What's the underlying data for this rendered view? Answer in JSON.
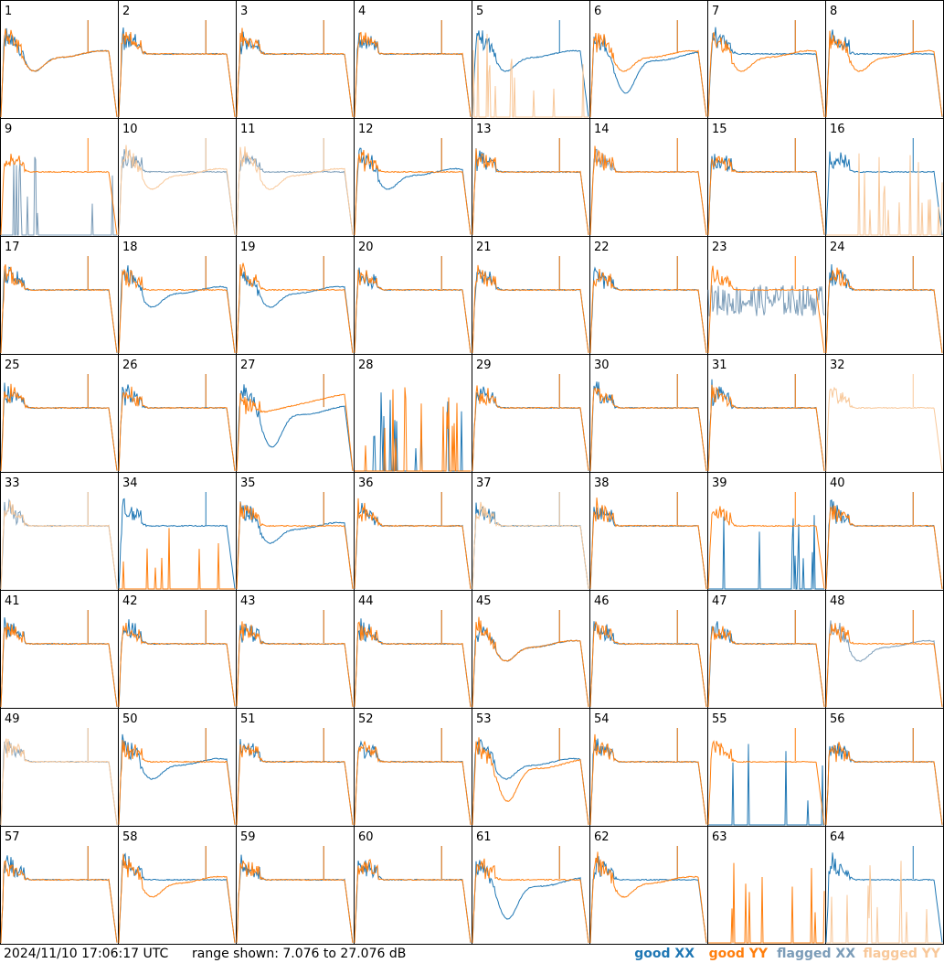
{
  "colors": {
    "good_xx": "#1f77b4",
    "good_yy": "#ff7f0e",
    "flagged_xx": "#7b9cb8",
    "flagged_yy": "#f8c89a",
    "frame": "#000000"
  },
  "footer": {
    "timestamp": "2024/11/10 17:06:17 UTC",
    "range_text": "range shown: 7.076 to 27.076 dB",
    "legend": {
      "good_xx": "good XX",
      "good_yy": "good YY",
      "flagged_xx": "flagged XX",
      "flagged_yy": "flagged YY"
    }
  },
  "chart_data": {
    "type": "line",
    "layout": "grid 8x8 small multiples",
    "x_axis": "frequency channel (unlabeled)",
    "ylim": [
      7.076,
      27.076
    ],
    "y_units": "dB",
    "panel_profiles": [
      {
        "panel": 1,
        "xx": "dip",
        "yy": "dip",
        "flag_xx": false,
        "flag_yy": false
      },
      {
        "panel": 2,
        "xx": "flat",
        "yy": "flat",
        "flag_xx": false,
        "flag_yy": false
      },
      {
        "panel": 3,
        "xx": "flat",
        "yy": "flat",
        "flag_xx": false,
        "flag_yy": false
      },
      {
        "panel": 4,
        "xx": "flat",
        "yy": "flat",
        "flag_xx": false,
        "flag_yy": false
      },
      {
        "panel": 5,
        "xx": "dip",
        "yy": "dead",
        "flag_xx": false,
        "flag_yy": true
      },
      {
        "panel": 6,
        "xx": "deepdip",
        "yy": "dip",
        "flag_xx": false,
        "flag_yy": false
      },
      {
        "panel": 7,
        "xx": "flat",
        "yy": "dip",
        "flag_xx": false,
        "flag_yy": false
      },
      {
        "panel": 8,
        "xx": "flat",
        "yy": "dip",
        "flag_xx": false,
        "flag_yy": false
      },
      {
        "panel": 9,
        "xx": "dead",
        "yy": "flat",
        "flag_xx": true,
        "flag_yy": false
      },
      {
        "panel": 10,
        "xx": "flat",
        "yy": "dip",
        "flag_xx": true,
        "flag_yy": true
      },
      {
        "panel": 11,
        "xx": "flat",
        "yy": "dip",
        "flag_xx": true,
        "flag_yy": true
      },
      {
        "panel": 12,
        "xx": "dip",
        "yy": "flat",
        "flag_xx": false,
        "flag_yy": false
      },
      {
        "panel": 13,
        "xx": "flat",
        "yy": "flat",
        "flag_xx": false,
        "flag_yy": false
      },
      {
        "panel": 14,
        "xx": "flat",
        "yy": "flat",
        "flag_xx": true,
        "flag_yy": false
      },
      {
        "panel": 15,
        "xx": "flat",
        "yy": "flat",
        "flag_xx": false,
        "flag_yy": false
      },
      {
        "panel": 16,
        "xx": "flat",
        "yy": "dead",
        "flag_xx": false,
        "flag_yy": true
      },
      {
        "panel": 17,
        "xx": "flat",
        "yy": "flat",
        "flag_xx": false,
        "flag_yy": false
      },
      {
        "panel": 18,
        "xx": "dip",
        "yy": "flat",
        "flag_xx": false,
        "flag_yy": false
      },
      {
        "panel": 19,
        "xx": "dip",
        "yy": "flat",
        "flag_xx": false,
        "flag_yy": false
      },
      {
        "panel": 20,
        "xx": "flat",
        "yy": "flat",
        "flag_xx": false,
        "flag_yy": false
      },
      {
        "panel": 21,
        "xx": "flat",
        "yy": "flat",
        "flag_xx": false,
        "flag_yy": false
      },
      {
        "panel": 22,
        "xx": "flat",
        "yy": "flat",
        "flag_xx": false,
        "flag_yy": false
      },
      {
        "panel": 23,
        "xx": "noisy",
        "yy": "flat",
        "flag_xx": true,
        "flag_yy": false
      },
      {
        "panel": 24,
        "xx": "flat",
        "yy": "flat",
        "flag_xx": false,
        "flag_yy": false
      },
      {
        "panel": 25,
        "xx": "flat",
        "yy": "flat",
        "flag_xx": false,
        "flag_yy": false
      },
      {
        "panel": 26,
        "xx": "flat",
        "yy": "flat",
        "flag_xx": false,
        "flag_yy": false
      },
      {
        "panel": 27,
        "xx": "deepdip",
        "yy": "rise",
        "flag_xx": false,
        "flag_yy": false
      },
      {
        "panel": 28,
        "xx": "dead",
        "yy": "dead",
        "flag_xx": false,
        "flag_yy": false
      },
      {
        "panel": 29,
        "xx": "flat",
        "yy": "flat",
        "flag_xx": false,
        "flag_yy": false
      },
      {
        "panel": 30,
        "xx": "flat",
        "yy": "flat",
        "flag_xx": false,
        "flag_yy": false
      },
      {
        "panel": 31,
        "xx": "flat",
        "yy": "flat",
        "flag_xx": false,
        "flag_yy": false
      },
      {
        "panel": 32,
        "xx": "none",
        "yy": "flat",
        "flag_xx": false,
        "flag_yy": true
      },
      {
        "panel": 33,
        "xx": "flat",
        "yy": "flat",
        "flag_xx": true,
        "flag_yy": true
      },
      {
        "panel": 34,
        "xx": "flat",
        "yy": "dead",
        "flag_xx": false,
        "flag_yy": false
      },
      {
        "panel": 35,
        "xx": "dip",
        "yy": "flat",
        "flag_xx": false,
        "flag_yy": false
      },
      {
        "panel": 36,
        "xx": "flat",
        "yy": "flat",
        "flag_xx": false,
        "flag_yy": false
      },
      {
        "panel": 37,
        "xx": "flat",
        "yy": "flat",
        "flag_xx": false,
        "flag_yy": true
      },
      {
        "panel": 38,
        "xx": "flat",
        "yy": "flat",
        "flag_xx": false,
        "flag_yy": false
      },
      {
        "panel": 39,
        "xx": "dead",
        "yy": "flat",
        "flag_xx": false,
        "flag_yy": false
      },
      {
        "panel": 40,
        "xx": "flat",
        "yy": "flat",
        "flag_xx": false,
        "flag_yy": false
      },
      {
        "panel": 41,
        "xx": "flat",
        "yy": "flat",
        "flag_xx": false,
        "flag_yy": false
      },
      {
        "panel": 42,
        "xx": "flat",
        "yy": "flat",
        "flag_xx": false,
        "flag_yy": false
      },
      {
        "panel": 43,
        "xx": "flat",
        "yy": "flat",
        "flag_xx": false,
        "flag_yy": false
      },
      {
        "panel": 44,
        "xx": "flat",
        "yy": "flat",
        "flag_xx": false,
        "flag_yy": false
      },
      {
        "panel": 45,
        "xx": "dip",
        "yy": "dip",
        "flag_xx": false,
        "flag_yy": false
      },
      {
        "panel": 46,
        "xx": "flat",
        "yy": "flat",
        "flag_xx": false,
        "flag_yy": false
      },
      {
        "panel": 47,
        "xx": "flat",
        "yy": "flat",
        "flag_xx": false,
        "flag_yy": false
      },
      {
        "panel": 48,
        "xx": "dip",
        "yy": "flat",
        "flag_xx": true,
        "flag_yy": false
      },
      {
        "panel": 49,
        "xx": "flat",
        "yy": "flat",
        "flag_xx": true,
        "flag_yy": true
      },
      {
        "panel": 50,
        "xx": "dip",
        "yy": "flat",
        "flag_xx": false,
        "flag_yy": false
      },
      {
        "panel": 51,
        "xx": "flat",
        "yy": "flat",
        "flag_xx": false,
        "flag_yy": false
      },
      {
        "panel": 52,
        "xx": "flat",
        "yy": "flat",
        "flag_xx": false,
        "flag_yy": false
      },
      {
        "panel": 53,
        "xx": "dip",
        "yy": "deepdip",
        "flag_xx": false,
        "flag_yy": false
      },
      {
        "panel": 54,
        "xx": "flat",
        "yy": "flat",
        "flag_xx": false,
        "flag_yy": false
      },
      {
        "panel": 55,
        "xx": "dead",
        "yy": "flat",
        "flag_xx": false,
        "flag_yy": false
      },
      {
        "panel": 56,
        "xx": "flat",
        "yy": "flat",
        "flag_xx": false,
        "flag_yy": false
      },
      {
        "panel": 57,
        "xx": "flat",
        "yy": "flat",
        "flag_xx": false,
        "flag_yy": false
      },
      {
        "panel": 58,
        "xx": "flat",
        "yy": "dip",
        "flag_xx": false,
        "flag_yy": false
      },
      {
        "panel": 59,
        "xx": "flat",
        "yy": "flat",
        "flag_xx": false,
        "flag_yy": false
      },
      {
        "panel": 60,
        "xx": "flat",
        "yy": "flat",
        "flag_xx": false,
        "flag_yy": false
      },
      {
        "panel": 61,
        "xx": "deepdip",
        "yy": "flat",
        "flag_xx": false,
        "flag_yy": false
      },
      {
        "panel": 62,
        "xx": "flat",
        "yy": "dip",
        "flag_xx": false,
        "flag_yy": false
      },
      {
        "panel": 63,
        "xx": "none",
        "yy": "dead",
        "flag_xx": false,
        "flag_yy": false
      },
      {
        "panel": 64,
        "xx": "flat",
        "yy": "dead",
        "flag_xx": false,
        "flag_yy": true
      }
    ]
  }
}
